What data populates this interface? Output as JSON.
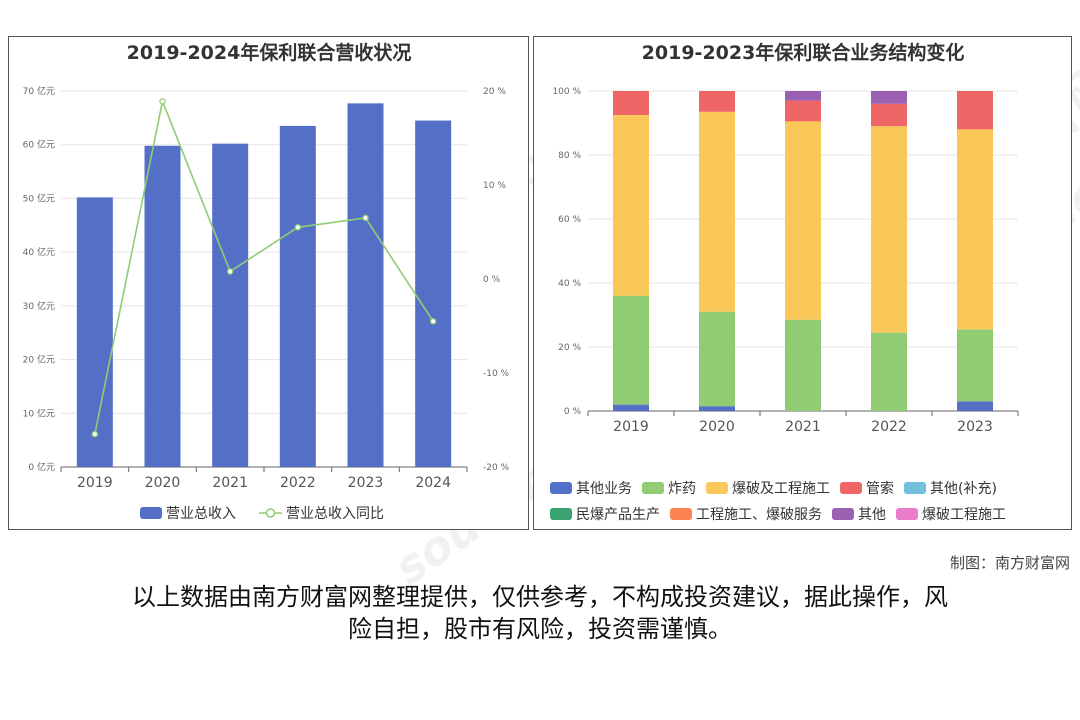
{
  "credit": "制图：南方财富网",
  "disclaimer": {
    "line1": "以上数据由南方财富网整理提供，仅供参考，不构成投资建议，据此操作，风",
    "line2": "险自担，股市有风险，投资需谨慎。"
  },
  "watermark": {
    "cn": "南方财富网",
    "en": "southmoney.com"
  },
  "colors": {
    "bar": "#5470c6",
    "line": "#91cc75",
    "其他业务": "#5470c6",
    "炸药": "#91cc75",
    "爆破及工程施工": "#fac858",
    "管索": "#ee6666",
    "其他(补充)": "#73c0de",
    "民爆产品生产": "#3ba272",
    "工程施工、爆破服务": "#fc8452",
    "其他": "#9a60b4",
    "爆破工程施工": "#ea7ccc"
  },
  "chart_data": [
    {
      "type": "bar",
      "title": "2019-2024年保利联合营收状况",
      "categories": [
        "2019",
        "2020",
        "2021",
        "2022",
        "2023",
        "2024"
      ],
      "series": [
        {
          "name": "营业总收入",
          "type": "bar",
          "axis": "left",
          "values": [
            50.2,
            59.8,
            60.2,
            63.5,
            67.7,
            64.5
          ]
        },
        {
          "name": "营业总收入同比",
          "type": "line",
          "axis": "right",
          "values": [
            -16.5,
            18.9,
            0.8,
            5.5,
            6.5,
            -4.5
          ]
        }
      ],
      "ylim": [
        0,
        70
      ],
      "yticks": [
        "0 亿元",
        "10 亿元",
        "20 亿元",
        "30 亿元",
        "40 亿元",
        "50 亿元",
        "60 亿元",
        "70 亿元"
      ],
      "y2lim": [
        -20,
        20
      ],
      "y2ticks": [
        "-20 %",
        "-10 %",
        "0 %",
        "10 %",
        "20 %"
      ],
      "grid": true,
      "legend": "bottom"
    },
    {
      "type": "bar",
      "stacked": true,
      "title": "2019-2023年保利联合业务结构变化",
      "categories": [
        "2019",
        "2020",
        "2021",
        "2022",
        "2023"
      ],
      "series": [
        {
          "name": "其他业务",
          "values": [
            2,
            1.5,
            0,
            0,
            3
          ]
        },
        {
          "name": "炸药",
          "values": [
            34,
            29.5,
            28.5,
            24.5,
            22.5
          ]
        },
        {
          "name": "爆破及工程施工",
          "values": [
            56.5,
            62.5,
            62,
            64.5,
            62.5
          ]
        },
        {
          "name": "管索",
          "values": [
            7.5,
            6.5,
            6.5,
            7,
            12
          ]
        },
        {
          "name": "其他(补充)",
          "values": [
            0,
            0,
            0,
            0,
            0
          ]
        },
        {
          "name": "民爆产品生产",
          "values": [
            0,
            0,
            0,
            0,
            0
          ]
        },
        {
          "name": "工程施工、爆破服务",
          "values": [
            0,
            0,
            0,
            0,
            0
          ]
        },
        {
          "name": "其他",
          "values": [
            0,
            0,
            3,
            4,
            0
          ]
        },
        {
          "name": "爆破工程施工",
          "values": [
            0,
            0,
            0,
            0,
            0
          ]
        }
      ],
      "ylim": [
        0,
        100
      ],
      "yticks": [
        "0 %",
        "20 %",
        "40 %",
        "60 %",
        "80 %",
        "100 %"
      ],
      "grid": true,
      "legend": "bottom"
    }
  ]
}
